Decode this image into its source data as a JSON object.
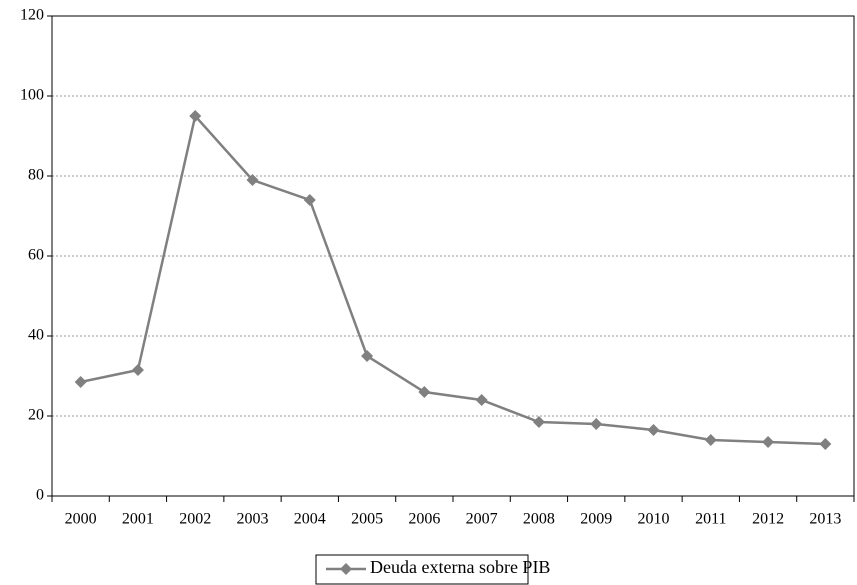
{
  "chart_data": {
    "type": "line",
    "categories": [
      "2000",
      "2001",
      "2002",
      "2003",
      "2004",
      "2005",
      "2006",
      "2007",
      "2008",
      "2009",
      "2010",
      "2011",
      "2012",
      "2013"
    ],
    "series": [
      {
        "name": "Deuda externa sobre PIB",
        "color": "#808080",
        "values": [
          28.5,
          31.5,
          95,
          79,
          74,
          35,
          26,
          24,
          18.5,
          18,
          16.5,
          14,
          13.5,
          13
        ]
      }
    ],
    "ylim": [
      0,
      120
    ],
    "yticks": [
      0,
      20,
      40,
      60,
      80,
      100,
      120
    ],
    "grid": true,
    "legend": "bottom"
  }
}
